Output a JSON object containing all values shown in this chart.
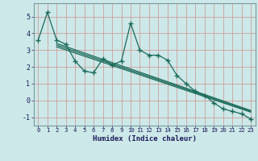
{
  "xlabel": "Humidex (Indice chaleur)",
  "ylabel": "",
  "background_color": "#cce8e8",
  "grid_color_minor": "#e8c8c8",
  "grid_color_major": "#e8c8c8",
  "line_color": "#1a6a5a",
  "xlim": [
    -0.5,
    23.5
  ],
  "ylim": [
    -1.5,
    5.8
  ],
  "yticks": [
    -1,
    0,
    1,
    2,
    3,
    4,
    5
  ],
  "xticks": [
    0,
    1,
    2,
    3,
    4,
    5,
    6,
    7,
    8,
    9,
    10,
    11,
    12,
    13,
    14,
    15,
    16,
    17,
    18,
    19,
    20,
    21,
    22,
    23
  ],
  "line1_x": [
    0,
    1,
    2,
    3,
    4,
    5,
    6,
    7,
    8,
    9,
    10,
    11,
    12,
    13,
    14,
    15,
    16,
    17,
    18,
    19,
    20,
    21,
    22,
    23
  ],
  "line1_y": [
    3.6,
    5.25,
    3.6,
    3.35,
    2.35,
    1.75,
    1.65,
    2.5,
    2.1,
    2.35,
    4.6,
    3.0,
    2.7,
    2.7,
    2.4,
    1.5,
    1.0,
    0.55,
    0.3,
    -0.15,
    -0.5,
    -0.65,
    -0.8,
    -1.1
  ],
  "line2_x": [
    2,
    23
  ],
  "line2_y": [
    3.4,
    -0.6
  ],
  "line3_x": [
    2,
    23
  ],
  "line3_y": [
    3.3,
    -0.65
  ],
  "line4_x": [
    2,
    23
  ],
  "line4_y": [
    3.2,
    -0.7
  ]
}
